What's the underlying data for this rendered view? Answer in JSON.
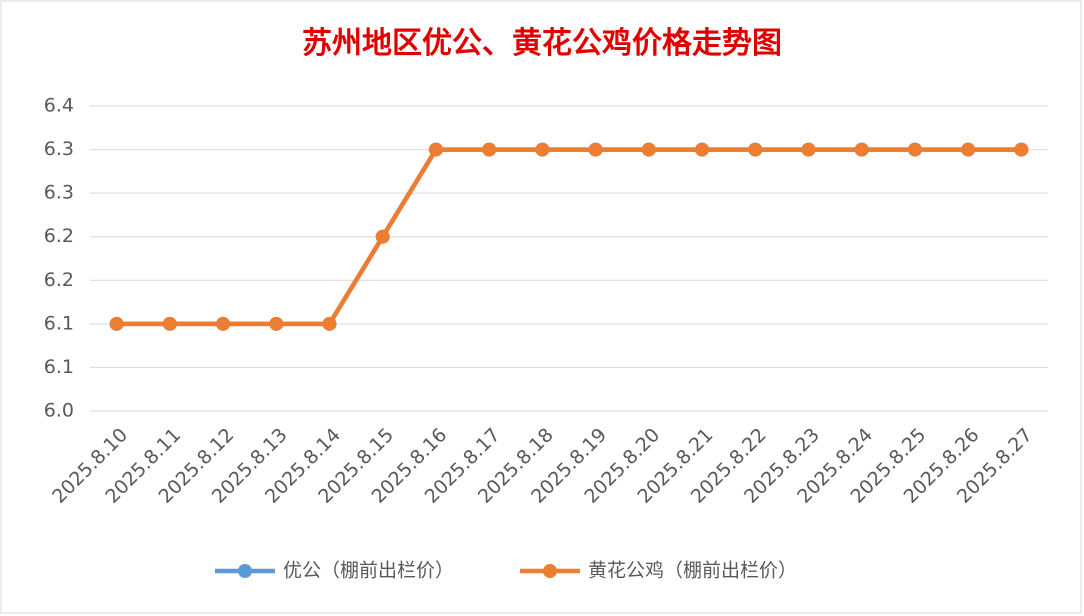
{
  "chart_data": {
    "type": "line",
    "title": "苏州地区优公、黄花公鸡价格走势图",
    "categories": [
      "2025.8.10",
      "2025.8.11",
      "2025.8.12",
      "2025.8.13",
      "2025.8.14",
      "2025.8.15",
      "2025.8.16",
      "2025.8.17",
      "2025.8.18",
      "2025.8.19",
      "2025.8.20",
      "2025.8.21",
      "2025.8.22",
      "2025.8.23",
      "2025.8.24",
      "2025.8.25",
      "2025.8.26",
      "2025.8.27"
    ],
    "series": [
      {
        "name": "优公（棚前出栏价）",
        "color": "#5b9bd5",
        "values": [
          6.1,
          6.1,
          6.1,
          6.1,
          6.1,
          6.2,
          6.3,
          6.3,
          6.3,
          6.3,
          6.3,
          6.3,
          6.3,
          6.3,
          6.3,
          6.3,
          6.3,
          6.3
        ]
      },
      {
        "name": "黄花公鸡（棚前出栏价）",
        "color": "#ed7d31",
        "values": [
          6.1,
          6.1,
          6.1,
          6.1,
          6.1,
          6.2,
          6.3,
          6.3,
          6.3,
          6.3,
          6.3,
          6.3,
          6.3,
          6.3,
          6.3,
          6.3,
          6.3,
          6.3
        ]
      }
    ],
    "ylim": [
      6.0,
      6.35
    ],
    "yticks": [
      {
        "value": 6.0,
        "label": "6.0"
      },
      {
        "value": 6.05,
        "label": "6.1"
      },
      {
        "value": 6.1,
        "label": "6.1"
      },
      {
        "value": 6.15,
        "label": "6.2"
      },
      {
        "value": 6.2,
        "label": "6.2"
      },
      {
        "value": 6.25,
        "label": "6.3"
      },
      {
        "value": 6.3,
        "label": "6.3"
      },
      {
        "value": 6.35,
        "label": "6.4"
      }
    ],
    "grid": true,
    "legend": "bottom"
  }
}
